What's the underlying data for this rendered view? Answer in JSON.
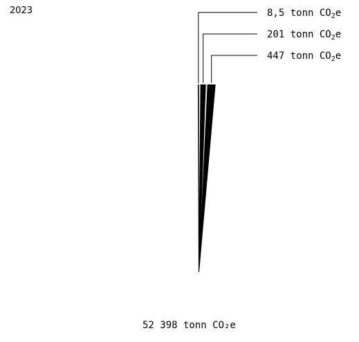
{
  "year": "2023",
  "chart_data": {
    "type": "area",
    "title": "2023",
    "unit": "tonn CO₂e",
    "series": [
      {
        "value": 8.5,
        "label": "8,5"
      },
      {
        "value": 201,
        "label": "201"
      },
      {
        "value": 447,
        "label": "447"
      }
    ],
    "total": {
      "value": 52398,
      "label": "52 398 tonn CO₂e"
    }
  }
}
